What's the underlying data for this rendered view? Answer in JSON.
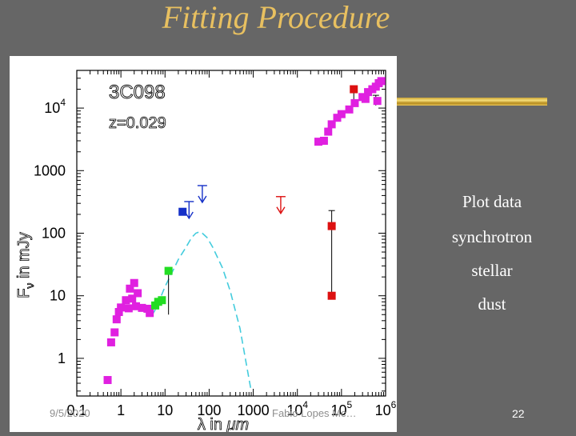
{
  "slide": {
    "title": "Fitting Procedure",
    "page_number": "22",
    "footer_date": "9/5/2020",
    "footer_text": "Fabio Lopes Mc…"
  },
  "legend": [
    "Plot data",
    "synchrotron",
    "stellar",
    "dust"
  ],
  "colors": {
    "background": "#666666",
    "title": "#E8C060",
    "magenta": "#E020E0",
    "red": "#DD1111",
    "blue": "#1530C8",
    "green": "#22DD22",
    "dust_curve": "#44CCDD"
  },
  "chart_data": {
    "type": "scatter",
    "object_label": "3C098",
    "redshift_label": "z=0.029",
    "xlabel_prefix": "λ in ",
    "xlabel_unit": "μm",
    "ylabel_main": "F",
    "ylabel_sub": "ν",
    "ylabel_suffix": " in mJy",
    "x_log": true,
    "y_log": true,
    "xlim": [
      0.1,
      1000000
    ],
    "ylim": [
      0.25,
      40000
    ],
    "x_ticks": [
      {
        "value": 0.1,
        "label": "0.1"
      },
      {
        "value": 1,
        "label": "1"
      },
      {
        "value": 10,
        "label": "10"
      },
      {
        "value": 100,
        "label": "100"
      },
      {
        "value": 1000,
        "label": "1000"
      },
      {
        "value": 10000,
        "label": "10",
        "sup": "4"
      },
      {
        "value": 100000,
        "label": "10",
        "sup": "5"
      },
      {
        "value": 1000000,
        "label": "10",
        "sup": "6"
      }
    ],
    "y_ticks": [
      {
        "value": 1,
        "label": "1"
      },
      {
        "value": 10,
        "label": "10"
      },
      {
        "value": 100,
        "label": "100"
      },
      {
        "value": 1000,
        "label": "1000"
      },
      {
        "value": 10000,
        "label": "10",
        "sup": "4"
      }
    ],
    "series": [
      {
        "color": "magenta",
        "points": [
          [
            0.5,
            0.45
          ],
          [
            0.6,
            1.8
          ],
          [
            0.72,
            2.6
          ],
          [
            0.8,
            4.2
          ],
          [
            0.9,
            5.5
          ],
          [
            1.0,
            6.5
          ],
          [
            1.3,
            8.5
          ],
          [
            1.6,
            13
          ],
          [
            2.0,
            16
          ],
          [
            1.8,
            9
          ],
          [
            2.4,
            11
          ],
          [
            3.0,
            6.4
          ],
          [
            4.0,
            6.2
          ],
          [
            4.5,
            5.3
          ],
          [
            1.5,
            6.3
          ],
          [
            2.2,
            6.8
          ],
          [
            30000,
            2900
          ],
          [
            40000,
            3000
          ],
          [
            50000,
            4200
          ],
          [
            60000,
            5500
          ],
          [
            80000,
            7000
          ],
          [
            100000,
            8000
          ],
          [
            150000,
            9500
          ],
          [
            200000,
            12000
          ],
          [
            300000,
            15000
          ],
          [
            350000,
            14000
          ],
          [
            400000,
            18000
          ],
          [
            500000,
            20000
          ],
          [
            600000,
            22000
          ],
          [
            700000,
            25000
          ],
          [
            800000,
            27000
          ],
          [
            650000,
            13000
          ]
        ]
      },
      {
        "color": "green",
        "points": [
          [
            6,
            7
          ],
          [
            7,
            8
          ],
          [
            8.5,
            8.5
          ],
          [
            12,
            25
          ]
        ]
      },
      {
        "color": "blue",
        "points": [
          [
            25,
            220
          ]
        ]
      },
      {
        "color": "red",
        "points": [
          [
            60000,
            130
          ],
          [
            60000,
            10
          ],
          [
            190000,
            20000
          ]
        ]
      }
    ],
    "upper_limits": [
      {
        "x": 35,
        "y": 200,
        "color": "blue"
      },
      {
        "x": 70,
        "y": 360,
        "color": "blue"
      },
      {
        "x": 4200,
        "y": 240,
        "color": "red"
      }
    ],
    "error_bars": [
      {
        "x": 12,
        "y_low": 5,
        "y_high": 28
      },
      {
        "x": 60000,
        "y_low": 10,
        "y_high": 230
      },
      {
        "x": 190000,
        "y_low": 12000,
        "y_high": 22000
      },
      {
        "x": 600000,
        "y_low": 11000,
        "y_high": 16000
      }
    ],
    "dust_curve": [
      [
        5,
        4.8
      ],
      [
        6,
        6
      ],
      [
        7,
        7.5
      ],
      [
        8,
        9.5
      ],
      [
        10,
        14
      ],
      [
        15,
        25
      ],
      [
        20,
        38
      ],
      [
        30,
        60
      ],
      [
        40,
        85
      ],
      [
        50,
        100
      ],
      [
        60,
        105
      ],
      [
        70,
        100
      ],
      [
        90,
        85
      ],
      [
        120,
        60
      ],
      [
        200,
        28
      ],
      [
        300,
        12
      ],
      [
        500,
        3
      ],
      [
        700,
        0.8
      ],
      [
        900,
        0.3
      ]
    ]
  }
}
